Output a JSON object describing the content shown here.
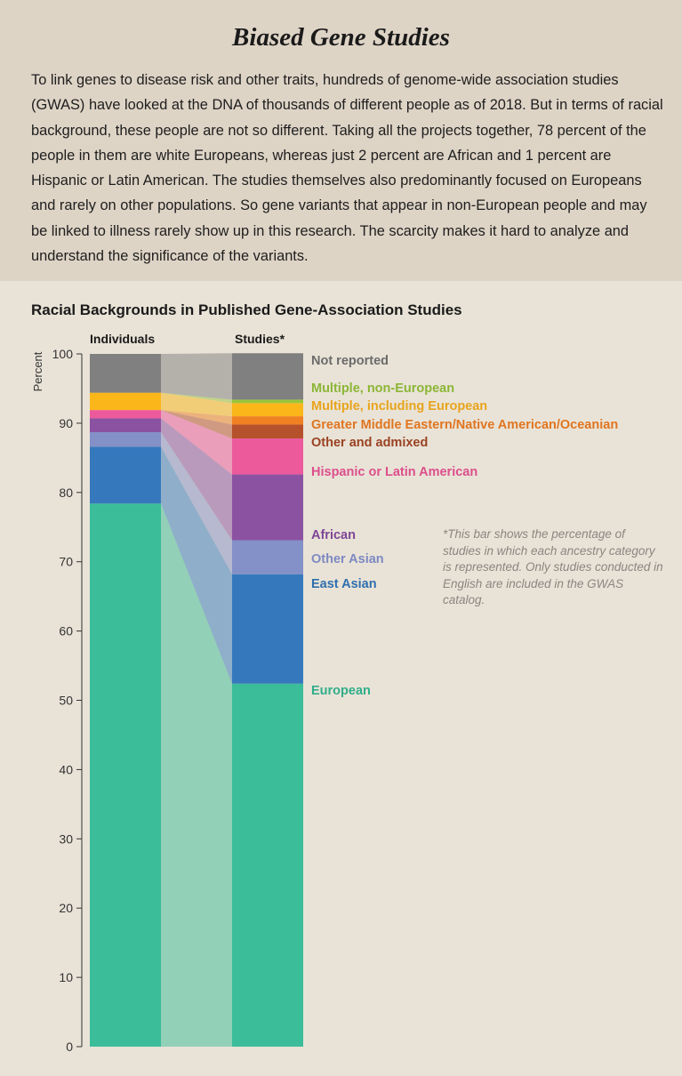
{
  "header": {
    "title": "Biased Gene Studies",
    "intro": "To link genes to disease risk and other traits, hundreds of genome-wide association studies (GWAS) have looked at the DNA of thousands of different people as of 2018. But in terms of racial background, these people are not so different. Taking all the projects together, 78 percent of the people in them are white Europeans, whereas just 2 percent are African and 1 percent are Hispanic or Latin American. The studies themselves also predominantly focused on Europeans and rarely on other populations. So gene variants that appear in non-European people and may be linked to illness rarely show up in this research. The scarcity makes it hard to analyze and understand the significance of the variants."
  },
  "chart_data": {
    "type": "bar",
    "stacked": true,
    "title": "Racial Backgrounds in Published Gene-Association Studies",
    "ylabel": "Percent",
    "ylim": [
      0,
      100
    ],
    "yticks": [
      0,
      10,
      20,
      30,
      40,
      50,
      60,
      70,
      80,
      90,
      100
    ],
    "categories": [
      "Individuals",
      "Studies*"
    ],
    "series": [
      {
        "name": "European",
        "color": "#3bbd9a",
        "label_color": "#2fae8a",
        "values": [
          78.4,
          52.4
        ]
      },
      {
        "name": "East Asian",
        "color": "#3579bc",
        "label_color": "#2f6fae",
        "values": [
          8.2,
          15.8
        ]
      },
      {
        "name": "Other Asian",
        "color": "#8490c8",
        "label_color": "#7e89c2",
        "values": [
          2.1,
          4.9
        ]
      },
      {
        "name": "African",
        "color": "#8c52a2",
        "label_color": "#7e4596",
        "values": [
          2.0,
          9.5
        ]
      },
      {
        "name": "Hispanic or Latin American",
        "color": "#ec5a9c",
        "label_color": "#dc4f8c",
        "values": [
          1.2,
          5.2
        ]
      },
      {
        "name": "Other and admixed",
        "color": "#b5522c",
        "label_color": "#9a4222",
        "values": [
          0,
          2.0
        ]
      },
      {
        "name": "Greater Middle Eastern/Native American/Oceanian",
        "color": "#f08122",
        "label_color": "#e07520",
        "values": [
          0,
          1.2
        ]
      },
      {
        "name": "Multiple, including European",
        "color": "#fbb71a",
        "label_color": "#e8a41d",
        "values": [
          2.5,
          1.9
        ]
      },
      {
        "name": "Multiple, non-European",
        "color": "#9ac43b",
        "label_color": "#8cb636",
        "values": [
          0,
          0.5
        ]
      },
      {
        "name": "Not reported",
        "color": "#808080",
        "label_color": "#6b6b6b",
        "values": [
          5.6,
          6.7
        ]
      }
    ],
    "footnote": "*This bar shows the percentage of studies in which each ancestry category is represented. Only studies conducted in English are included in the GWAS catalog."
  }
}
